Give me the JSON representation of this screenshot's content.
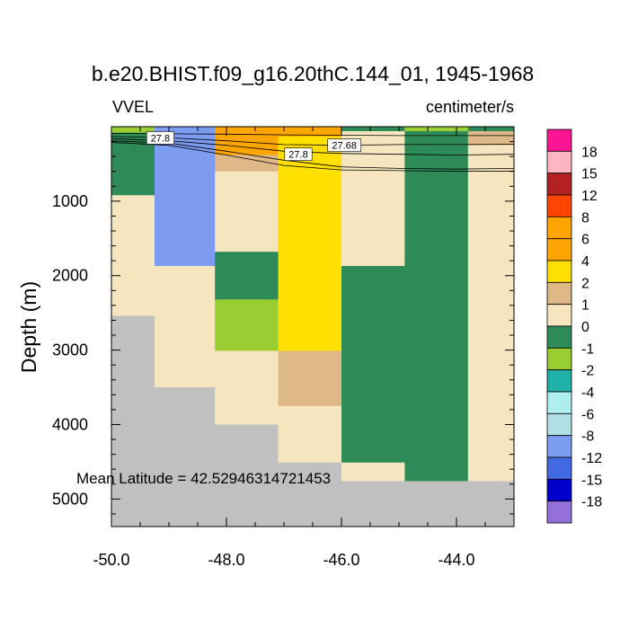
{
  "chart_data": {
    "type": "heatmap",
    "title": "b.e20.BHIST.f09_g16.20thC.144_01, 1945-1968",
    "left_label": "VVEL",
    "right_label": "centimeter/s",
    "ylabel": "Depth (m)",
    "xlabel": "",
    "xlim": [
      -50.0,
      -43.0
    ],
    "ylim": [
      5370,
      0
    ],
    "x_ticks": [
      -50.0,
      -48.0,
      -46.0,
      -44.0
    ],
    "x_tick_labels": [
      "-50.0",
      "-48.0",
      "-46.0",
      "-44.0"
    ],
    "y_ticks": [
      1000,
      2000,
      3000,
      4000,
      5000
    ],
    "y_tick_labels": [
      "1000",
      "2000",
      "3000",
      "4000",
      "5000"
    ],
    "annotation": "Mean Latitude = 42.52946314721453",
    "missing_color": "#c0c0c0",
    "colorbar": {
      "levels": [
        "18",
        "15",
        "12",
        "8",
        "6",
        "4",
        "2",
        "1",
        "0",
        "-1",
        "-2",
        "-4",
        "-6",
        "-8",
        "-12",
        "-15",
        "-18"
      ],
      "colors": [
        "#ff1493",
        "#ffb6c1",
        "#b22222",
        "#ff4500",
        "#ffa500",
        "#ffa500",
        "#ffe000",
        "#deb887",
        "#f5e6c0",
        "#2e8b57",
        "#9acd32",
        "#20b2aa",
        "#afeeee",
        "#b0e0e6",
        "#7b9cf0",
        "#4169e1",
        "#0000cd",
        "#9370db"
      ]
    },
    "columns": [
      {
        "x0": -50.0,
        "x1": -49.25,
        "cells": [
          {
            "y0": 0,
            "y1": 80,
            "color": "#9acd32"
          },
          {
            "y0": 80,
            "y1": 920,
            "color": "#2e8b57"
          },
          {
            "y0": 920,
            "y1": 2540,
            "color": "#f5e6c0"
          },
          {
            "y0": 2540,
            "y1": 5370,
            "color": "#c0c0c0"
          }
        ]
      },
      {
        "x0": -49.25,
        "x1": -48.2,
        "cells": [
          {
            "y0": 0,
            "y1": 1870,
            "color": "#7b9cf0"
          },
          {
            "y0": 1870,
            "y1": 3500,
            "color": "#f5e6c0"
          },
          {
            "y0": 3500,
            "y1": 5370,
            "color": "#c0c0c0"
          }
        ]
      },
      {
        "x0": -48.2,
        "x1": -47.1,
        "cells": [
          {
            "y0": 0,
            "y1": 380,
            "color": "#ffa500"
          },
          {
            "y0": 380,
            "y1": 600,
            "color": "#deb887"
          },
          {
            "y0": 600,
            "y1": 1680,
            "color": "#f5e6c0"
          },
          {
            "y0": 1680,
            "y1": 2320,
            "color": "#2e8b57"
          },
          {
            "y0": 2320,
            "y1": 3010,
            "color": "#9acd32"
          },
          {
            "y0": 3010,
            "y1": 4000,
            "color": "#f5e6c0"
          },
          {
            "y0": 4000,
            "y1": 5370,
            "color": "#c0c0c0"
          }
        ]
      },
      {
        "x0": -47.1,
        "x1": -46.0,
        "cells": [
          {
            "y0": 0,
            "y1": 130,
            "color": "#ffa500"
          },
          {
            "y0": 130,
            "y1": 560,
            "color": "#ffe000"
          },
          {
            "y0": 560,
            "y1": 3010,
            "color": "#ffe000"
          },
          {
            "y0": 3010,
            "y1": 3750,
            "color": "#deb887"
          },
          {
            "y0": 3750,
            "y1": 4510,
            "color": "#f5e6c0"
          },
          {
            "y0": 4510,
            "y1": 5370,
            "color": "#c0c0c0"
          }
        ]
      },
      {
        "x0": -46.0,
        "x1": -44.9,
        "cells": [
          {
            "y0": 0,
            "y1": 60,
            "color": "#2e8b57"
          },
          {
            "y0": 60,
            "y1": 1870,
            "color": "#f5e6c0"
          },
          {
            "y0": 1870,
            "y1": 4510,
            "color": "#2e8b57"
          },
          {
            "y0": 4510,
            "y1": 4760,
            "color": "#f5e6c0"
          },
          {
            "y0": 4760,
            "y1": 5370,
            "color": "#c0c0c0"
          }
        ]
      },
      {
        "x0": -44.9,
        "x1": -43.8,
        "cells": [
          {
            "y0": 0,
            "y1": 60,
            "color": "#9acd32"
          },
          {
            "y0": 60,
            "y1": 4760,
            "color": "#2e8b57"
          },
          {
            "y0": 4760,
            "y1": 5370,
            "color": "#c0c0c0"
          }
        ]
      },
      {
        "x0": -43.8,
        "x1": -43.0,
        "cells": [
          {
            "y0": 0,
            "y1": 60,
            "color": "#2e8b57"
          },
          {
            "y0": 60,
            "y1": 250,
            "color": "#deb887"
          },
          {
            "y0": 250,
            "y1": 4760,
            "color": "#f5e6c0"
          },
          {
            "y0": 4760,
            "y1": 5370,
            "color": "#c0c0c0"
          }
        ]
      }
    ],
    "contours": [
      {
        "level": "27.8",
        "points": [
          [
            -50.0,
            90
          ],
          [
            -49.0,
            95
          ],
          [
            -48.0,
            100
          ],
          [
            -47.0,
            110
          ],
          [
            -46.0,
            115
          ],
          [
            -45.0,
            120
          ],
          [
            -44.0,
            120
          ],
          [
            -43.0,
            120
          ]
        ]
      },
      {
        "level": "27.68",
        "points": [
          [
            -50.0,
            130
          ],
          [
            -49.0,
            150
          ],
          [
            -48.0,
            190
          ],
          [
            -47.0,
            240
          ],
          [
            -46.0,
            250
          ],
          [
            -45.0,
            240
          ],
          [
            -44.0,
            240
          ],
          [
            -43.0,
            235
          ]
        ]
      },
      {
        "level": "27.8",
        "points": [
          [
            -50.0,
            160
          ],
          [
            -49.0,
            190
          ],
          [
            -48.0,
            250
          ],
          [
            -47.0,
            330
          ],
          [
            -46.0,
            360
          ],
          [
            -45.0,
            370
          ],
          [
            -44.0,
            380
          ],
          [
            -43.0,
            370
          ]
        ]
      },
      {
        "level": "",
        "points": [
          [
            -50.0,
            190
          ],
          [
            -49.0,
            220
          ],
          [
            -48.0,
            330
          ],
          [
            -47.0,
            450
          ],
          [
            -46.0,
            540
          ],
          [
            -45.0,
            560
          ],
          [
            -44.0,
            570
          ],
          [
            -43.0,
            560
          ]
        ]
      },
      {
        "level": "",
        "points": [
          [
            -50.0,
            210
          ],
          [
            -49.0,
            250
          ],
          [
            -48.0,
            380
          ],
          [
            -47.0,
            520
          ],
          [
            -46.0,
            580
          ],
          [
            -45.0,
            590
          ],
          [
            -44.0,
            600
          ],
          [
            -43.0,
            595
          ]
        ]
      }
    ],
    "contour_labels": [
      {
        "text": "27.8",
        "x": -49.15,
        "y": 150
      },
      {
        "text": "27.8",
        "x": -46.75,
        "y": 370
      },
      {
        "text": "27.68",
        "x": -45.95,
        "y": 250
      }
    ]
  }
}
